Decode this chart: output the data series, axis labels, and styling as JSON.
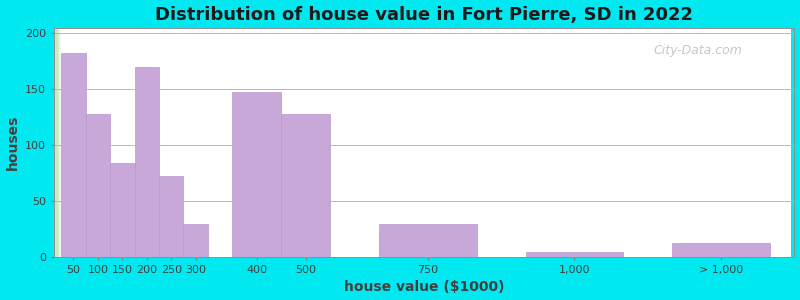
{
  "title": "Distribution of house value in Fort Pierre, SD in 2022",
  "xlabel": "house value ($1000)",
  "ylabel": "houses",
  "bar_color": "#c8a8d8",
  "bar_edge_color": "#b898c8",
  "ylim": [
    0,
    205
  ],
  "yticks": [
    0,
    50,
    100,
    150,
    200
  ],
  "bg_outer": "#00e8f0",
  "bg_plot_left": "#c8e8c0",
  "bg_plot_right": "#ffffff",
  "grid_color": "#e8a0b0",
  "bars": [
    {
      "label": "50",
      "height": 183
    },
    {
      "label": "100",
      "height": 128
    },
    {
      "label": "150",
      "height": 84
    },
    {
      "label": "200",
      "height": 170
    },
    {
      "label": "250",
      "height": 73
    },
    {
      "label": "300",
      "height": 30
    },
    {
      "label": "400",
      "height": 148
    },
    {
      "label": "500",
      "height": 128
    },
    {
      "label": "750",
      "height": 30
    },
    {
      "label": "1,000",
      "height": 5
    },
    {
      "label": "> 1,000",
      "height": 13
    }
  ],
  "x_positions": [
    0,
    1,
    2,
    3,
    4,
    5,
    7,
    9,
    13,
    19,
    25
  ],
  "bar_widths": [
    1,
    1,
    1,
    1,
    1,
    1,
    2,
    2,
    4,
    4,
    4
  ],
  "xtick_pos": [
    0.5,
    1.5,
    2.5,
    3.5,
    4.5,
    5.5,
    8,
    10,
    15,
    21,
    27
  ],
  "xtick_labels": [
    "50",
    "100",
    "150",
    "200",
    "250",
    "300",
    "400",
    "500",
    "750",
    "1,000",
    "> 1,000"
  ],
  "xlim": [
    -0.3,
    30
  ],
  "watermark": "City-Data.com",
  "title_fontsize": 13,
  "axis_label_fontsize": 10,
  "tick_fontsize": 8
}
